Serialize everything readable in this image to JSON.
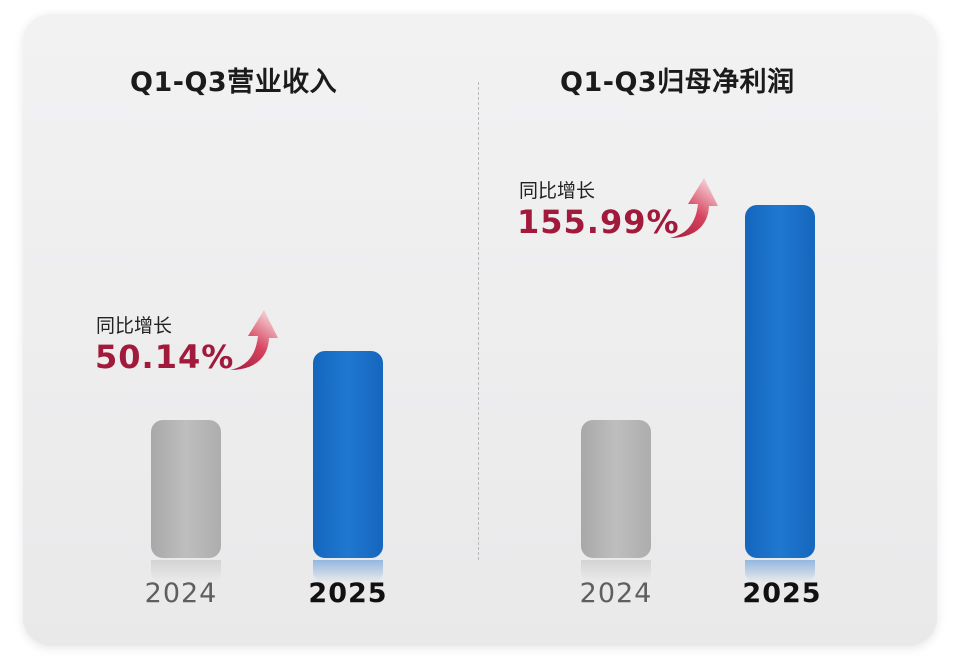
{
  "colors": {
    "bar_prev": "#b3b3b3",
    "bar_curr": "#1a70c6",
    "growth": "#a21a3b"
  },
  "chart_data": [
    {
      "type": "bar",
      "title": "Q1-Q3营业收入",
      "categories": [
        "2024",
        "2025"
      ],
      "values": [
        100,
        150.14
      ],
      "annotation": {
        "label": "同比增长",
        "value": "50.14%"
      }
    },
    {
      "type": "bar",
      "title": "Q1-Q3归母净利润",
      "categories": [
        "2024",
        "2025"
      ],
      "values": [
        100,
        255.99
      ],
      "annotation": {
        "label": "同比增长",
        "value": "155.99%"
      }
    }
  ]
}
